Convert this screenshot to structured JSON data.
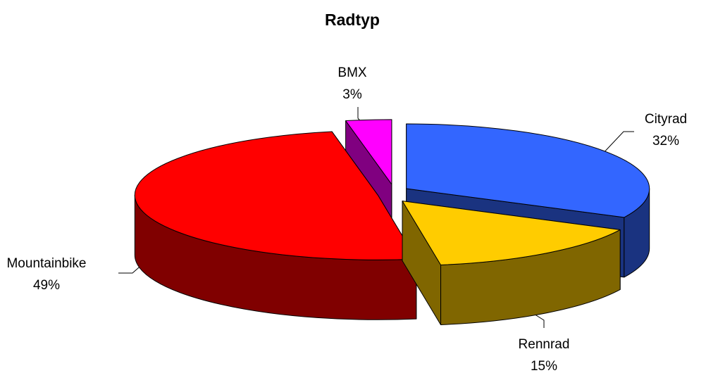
{
  "chart_data": {
    "type": "pie",
    "title": "Radtyp",
    "categories": [
      "Cityrad",
      "Rennrad",
      "Mountainbike",
      "BMX"
    ],
    "values": [
      32,
      15,
      49,
      3
    ],
    "value_labels": [
      "32%",
      "15%",
      "49%",
      "3%"
    ],
    "colors": [
      "#3366ff",
      "#ffcc00",
      "#ff0000",
      "#ff00ff"
    ]
  }
}
